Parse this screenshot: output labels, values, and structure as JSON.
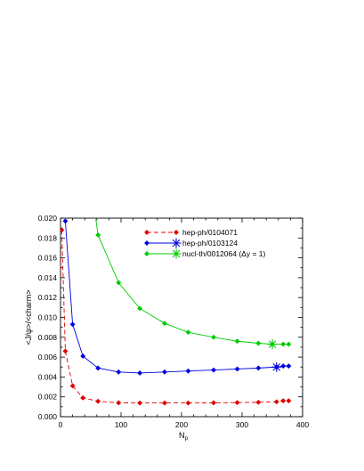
{
  "chart_data": {
    "type": "line",
    "xlabel": "N_p",
    "xlabel_main": "N",
    "xlabel_sub": "p",
    "ylabel": "<J/ψ>/<charm>",
    "xlim": [
      0,
      400
    ],
    "ylim": [
      0,
      0.02
    ],
    "x_ticks": [
      0,
      100,
      200,
      300,
      400
    ],
    "y_ticks": [
      0,
      0.002,
      0.004,
      0.006,
      0.008,
      0.01,
      0.012,
      0.014,
      0.016,
      0.018,
      0.02
    ],
    "x_tick_labels": [
      "0",
      "100",
      "200",
      "300",
      "400"
    ],
    "y_tick_labels": [
      "0.000",
      "0.002",
      "0.004",
      "0.006",
      "0.008",
      "0.010",
      "0.012",
      "0.014",
      "0.016",
      "0.018",
      "0.020"
    ],
    "grid": false,
    "legend_position": "top-right",
    "series": [
      {
        "name": "hep-ph/0104071",
        "color": "#e00000",
        "dashed": true,
        "marker": "diamond",
        "end_marker": "diamond",
        "x": [
          2,
          8,
          20,
          37,
          62,
          96,
          131,
          172,
          211,
          253,
          292,
          327,
          357,
          368,
          377
        ],
        "y": [
          0.0188,
          0.0066,
          0.0031,
          0.0019,
          0.00155,
          0.0014,
          0.00138,
          0.00138,
          0.00138,
          0.0014,
          0.00142,
          0.00145,
          0.0015,
          0.0016,
          0.0016
        ]
      },
      {
        "name": "hep-ph/0103124",
        "color": "#0000dd",
        "dashed": false,
        "marker": "diamond",
        "end_marker": "asterisk",
        "x": [
          8,
          20,
          37,
          62,
          96,
          131,
          172,
          211,
          253,
          292,
          327,
          357,
          368,
          377
        ],
        "y": [
          0.0197,
          0.0093,
          0.0061,
          0.0049,
          0.0045,
          0.0044,
          0.0045,
          0.0046,
          0.0047,
          0.0048,
          0.0049,
          0.005,
          0.0051,
          0.0051
        ]
      },
      {
        "name": "nucl-th/0012064 (Δy = 1)",
        "color": "#00cc00",
        "dashed": false,
        "marker": "diamond",
        "end_marker": "asterisk",
        "x": [
          57,
          62,
          96,
          131,
          172,
          211,
          253,
          292,
          327,
          350,
          368,
          377
        ],
        "y": [
          0.0205,
          0.0183,
          0.0135,
          0.0109,
          0.0094,
          0.0085,
          0.008,
          0.0076,
          0.0074,
          0.0073,
          0.0073,
          0.0073
        ]
      }
    ],
    "highlight_markers": [
      {
        "series": 1,
        "x": 357,
        "y": 0.005
      },
      {
        "series": 2,
        "x": 350,
        "y": 0.0073
      }
    ]
  }
}
